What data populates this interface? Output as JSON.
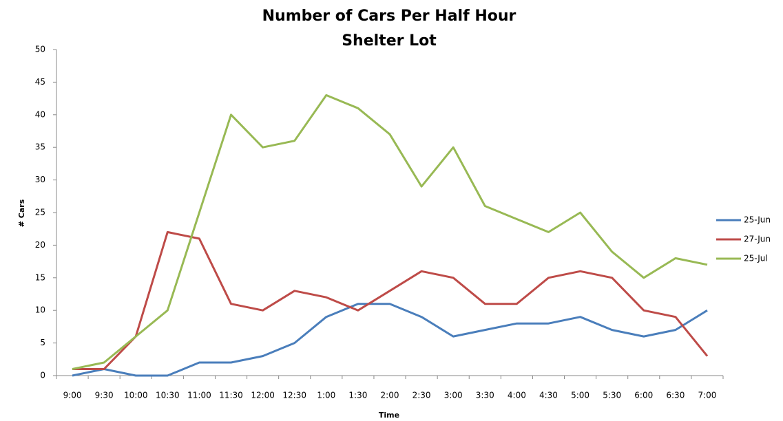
{
  "chart_data": {
    "type": "line",
    "title": "Number of Cars Per Half Hour",
    "subtitle": "Shelter Lot",
    "x_label": "Time",
    "y_label": "# Cars",
    "categories": [
      "9:00",
      "9:30",
      "10:00",
      "10:30",
      "11:00",
      "11:30",
      "12:00",
      "12:30",
      "1:00",
      "1:30",
      "2:00",
      "2:30",
      "3:00",
      "3:30",
      "4:00",
      "4:30",
      "5:00",
      "5:30",
      "6:00",
      "6:30",
      "7:00"
    ],
    "series": [
      {
        "name": "25-Jun",
        "color": "#4a7ebb",
        "values": [
          0,
          1,
          0,
          0,
          2,
          2,
          3,
          5,
          9,
          11,
          11,
          9,
          6,
          7,
          8,
          8,
          9,
          7,
          6,
          7,
          10
        ]
      },
      {
        "name": "27-Jun",
        "color": "#be4b48",
        "values": [
          1,
          1,
          6,
          22,
          21,
          11,
          10,
          13,
          12,
          10,
          13,
          16,
          15,
          11,
          11,
          15,
          16,
          15,
          10,
          9,
          3
        ]
      },
      {
        "name": "25-Jul",
        "color": "#98b954",
        "values": [
          1,
          2,
          6,
          10,
          25,
          40,
          35,
          36,
          43,
          41,
          37,
          29,
          35,
          26,
          24,
          22,
          25,
          19,
          15,
          18,
          17
        ]
      }
    ],
    "ylim": [
      0,
      50
    ],
    "yticks": [
      0,
      5,
      10,
      15,
      20,
      25,
      30,
      35,
      40,
      45,
      50
    ],
    "grid": false,
    "legend": "right"
  }
}
